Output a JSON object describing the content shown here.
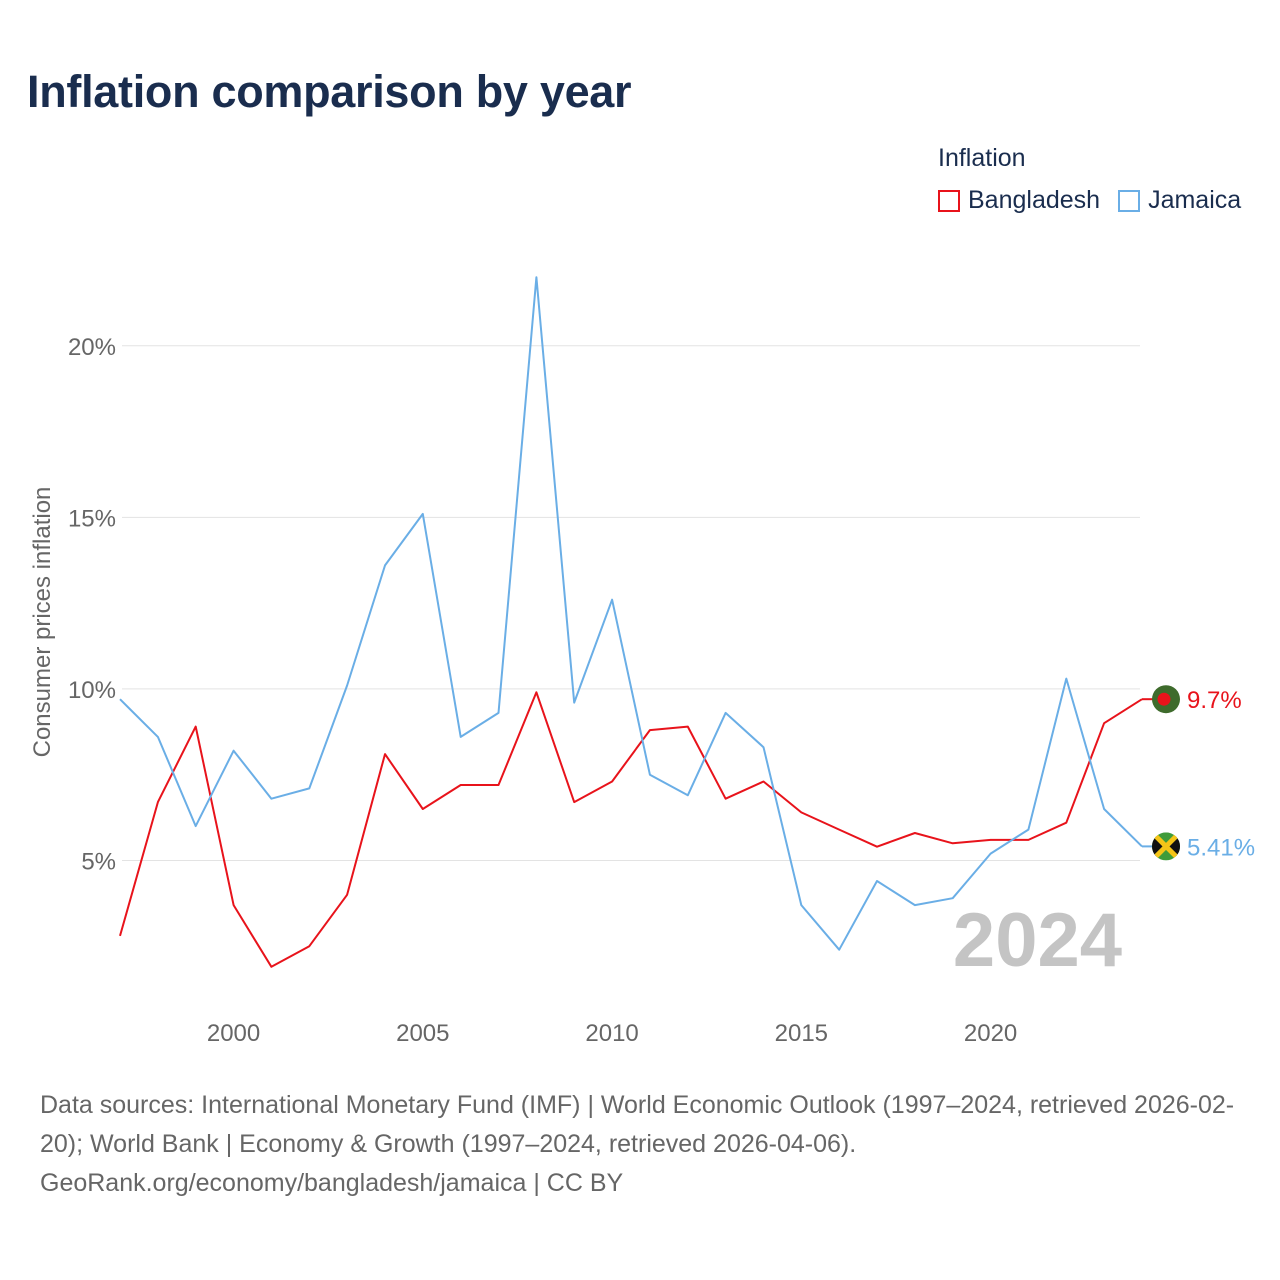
{
  "title": "Inflation comparison by year",
  "legend": {
    "title": "Inflation",
    "items": [
      {
        "label": "Bangladesh",
        "color": "#e8131b"
      },
      {
        "label": "Jamaica",
        "color": "#6aaee6"
      }
    ]
  },
  "footer": {
    "sources": "Data sources: International Monetary Fund (IMF) | World Economic Outlook (1997–2024, retrieved 2026-02-20); World Bank | Economy & Growth (1997–2024, retrieved 2026-04-06).",
    "credit": "GeoRank.org/economy/bangladesh/jamaica | CC BY"
  },
  "chart_data": {
    "type": "line",
    "title": "Inflation comparison by year",
    "xlabel": "",
    "ylabel": "Consumer prices inflation",
    "x": [
      1997,
      1998,
      1999,
      2000,
      2001,
      2002,
      2003,
      2004,
      2005,
      2006,
      2007,
      2008,
      2009,
      2010,
      2011,
      2012,
      2013,
      2014,
      2015,
      2016,
      2017,
      2018,
      2019,
      2020,
      2021,
      2022,
      2023,
      2024
    ],
    "xlim": [
      1997,
      2024
    ],
    "ylim": [
      0.7,
      22.5
    ],
    "xticks": [
      2000,
      2005,
      2010,
      2015,
      2020
    ],
    "xtick_labels": [
      "2000",
      "2005",
      "2010",
      "2015",
      "2020"
    ],
    "yticks": [
      5,
      10,
      15,
      20
    ],
    "ytick_labels": [
      "5%",
      "10%",
      "15%",
      "20%"
    ],
    "grid": true,
    "legend_position": "top-right",
    "year_watermark": "2024",
    "series": [
      {
        "name": "Bangladesh",
        "color": "#e8131b",
        "end_label": "9.7%",
        "flag": "bangladesh-flag",
        "values": [
          2.8,
          6.7,
          8.9,
          3.7,
          1.9,
          2.5,
          4.0,
          8.1,
          6.5,
          7.2,
          7.2,
          9.9,
          6.7,
          7.3,
          8.8,
          8.9,
          6.8,
          7.3,
          6.4,
          5.9,
          5.4,
          5.8,
          5.5,
          5.6,
          5.6,
          6.1,
          9.0,
          9.7
        ]
      },
      {
        "name": "Jamaica",
        "color": "#6aaee6",
        "end_label": "5.41%",
        "flag": "jamaica-flag",
        "values": [
          9.7,
          8.6,
          6.0,
          8.2,
          6.8,
          7.1,
          10.1,
          13.6,
          15.1,
          8.6,
          9.3,
          22.0,
          9.6,
          12.6,
          7.5,
          6.9,
          9.3,
          8.3,
          3.7,
          2.4,
          4.4,
          3.7,
          3.9,
          5.2,
          5.9,
          10.3,
          6.5,
          5.41
        ]
      }
    ]
  }
}
